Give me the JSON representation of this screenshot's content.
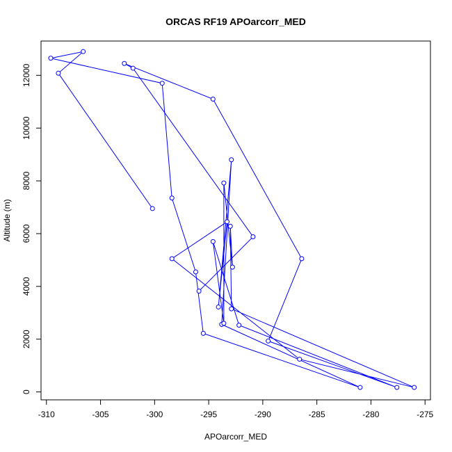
{
  "chart_data": {
    "type": "line",
    "title": "ORCAS RF19 APOarcorr_MED",
    "xlabel": "APOarcorr_MED",
    "ylabel": "Altitude (m)",
    "xlim": [
      -310.5,
      -274.5
    ],
    "ylim": [
      -300,
      13300
    ],
    "x_ticks": [
      -310,
      -305,
      -300,
      -295,
      -290,
      -285,
      -280,
      -275
    ],
    "y_ticks": [
      0,
      2000,
      4000,
      6000,
      8000,
      10000,
      12000
    ],
    "grid": false,
    "legend": "none",
    "markers": "open-circle",
    "colors": {
      "series": "#0000ff",
      "axis": "#000000"
    },
    "series": [
      {
        "points": [
          {
            "x": -300.2,
            "y": 6950
          },
          {
            "x": -308.9,
            "y": 12080
          },
          {
            "x": -306.6,
            "y": 12900
          },
          {
            "x": -309.6,
            "y": 12650
          },
          {
            "x": -299.3,
            "y": 11700
          },
          {
            "x": -298.4,
            "y": 7350
          },
          {
            "x": -296.2,
            "y": 4550
          },
          {
            "x": -295.5,
            "y": 2220
          },
          {
            "x": -281.0,
            "y": 170
          },
          {
            "x": -293.8,
            "y": 2560
          },
          {
            "x": -292.9,
            "y": 8800
          },
          {
            "x": -294.1,
            "y": 3220
          },
          {
            "x": -293.3,
            "y": 6450
          },
          {
            "x": -298.4,
            "y": 5050
          },
          {
            "x": -286.6,
            "y": 1240
          },
          {
            "x": -276.0,
            "y": 170
          },
          {
            "x": -292.9,
            "y": 3150
          },
          {
            "x": -293.0,
            "y": 6280
          },
          {
            "x": -292.8,
            "y": 4730
          },
          {
            "x": -293.6,
            "y": 7920
          },
          {
            "x": -293.6,
            "y": 2600
          },
          {
            "x": -294.6,
            "y": 5700
          },
          {
            "x": -292.2,
            "y": 2530
          },
          {
            "x": -277.6,
            "y": 170
          },
          {
            "x": -289.5,
            "y": 1930
          },
          {
            "x": -286.4,
            "y": 5050
          },
          {
            "x": -294.6,
            "y": 11100
          },
          {
            "x": -302.8,
            "y": 12450
          },
          {
            "x": -302.0,
            "y": 12270
          },
          {
            "x": -290.9,
            "y": 5880
          },
          {
            "x": -295.9,
            "y": 3820
          }
        ]
      }
    ]
  }
}
